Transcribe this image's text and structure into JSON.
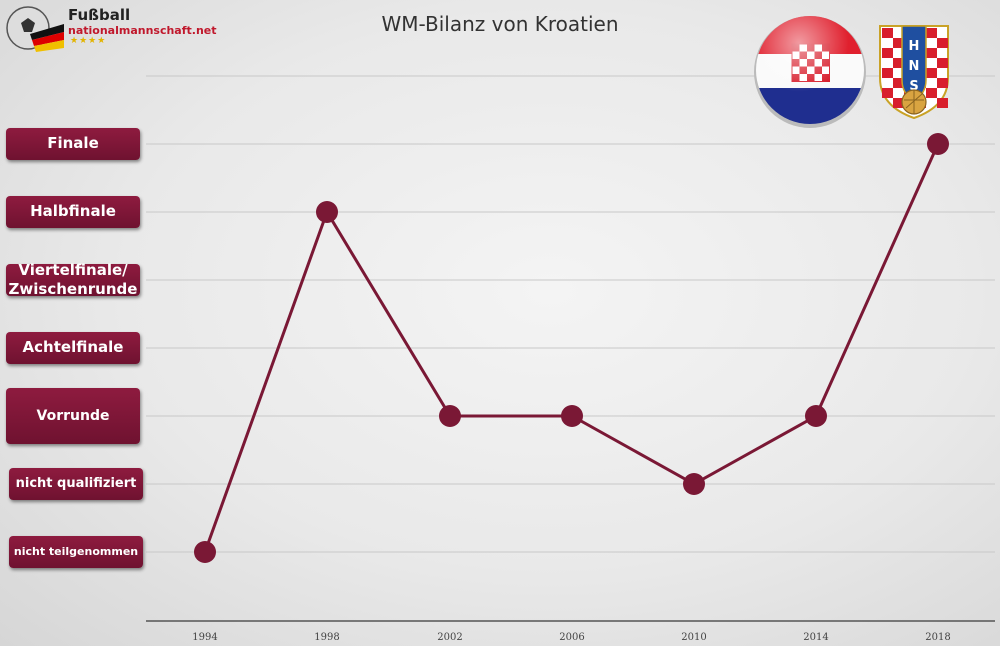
{
  "logo": {
    "line1": "Fußball",
    "line2": "nationalmannschaft.net",
    "stars": "★★★★"
  },
  "chart_data": {
    "type": "line",
    "title": "WM-Bilanz von Kroatien",
    "categories": [
      "1994",
      "1998",
      "2002",
      "2006",
      "2010",
      "2014",
      "2018"
    ],
    "y_categories": [
      "nicht teilgenommen",
      "nicht qualifiziert",
      "Vorrunde",
      "Achtelfinale",
      "Viertelfinale/\nZwischenrunde",
      "Halbfinale",
      "Finale"
    ],
    "series": [
      {
        "values": [
          0,
          5,
          2,
          2,
          1,
          2,
          6
        ]
      }
    ],
    "colors": {
      "line": "#7a1835",
      "marker": "#7a1835",
      "label_bg": "#7a1835",
      "grid": "#c8c8c8"
    },
    "grid": true
  },
  "emblems": {
    "badge_letters": [
      "H",
      "N",
      "S"
    ]
  }
}
